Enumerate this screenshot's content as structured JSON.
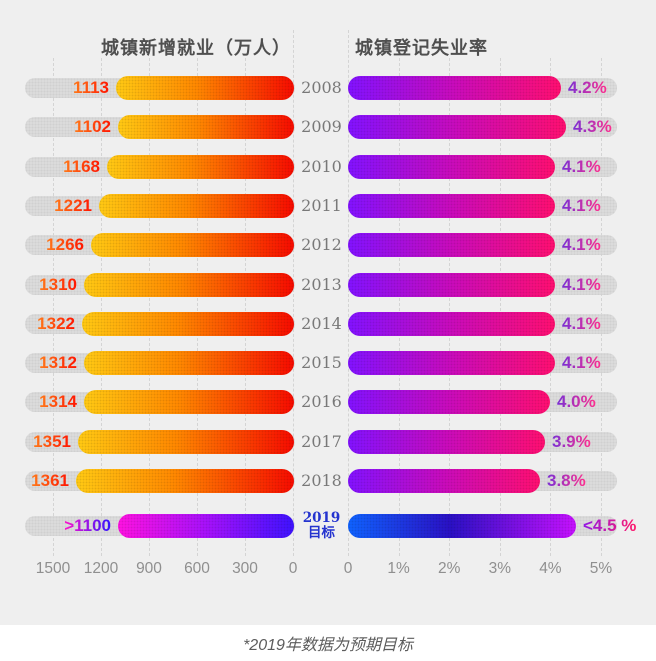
{
  "chart_data": {
    "type": "bar",
    "orientation": "horizontal-paired",
    "note": "*2019年数据为预期目标",
    "left_panel": {
      "title": "城镇新增就业（万人）",
      "axis_ticks": [
        "1500",
        "1200",
        "900",
        "600",
        "300",
        "0"
      ],
      "axis_range": [
        0,
        1500
      ],
      "direction": "right-to-left",
      "grid": true
    },
    "right_panel": {
      "title": "城镇登记失业率",
      "axis_ticks": [
        "0",
        "1%",
        "2%",
        "3%",
        "4%",
        "5%"
      ],
      "axis_range": [
        0,
        5
      ],
      "direction": "left-to-right",
      "grid": true
    },
    "categories": [
      "2008",
      "2009",
      "2010",
      "2011",
      "2012",
      "2013",
      "2014",
      "2015",
      "2016",
      "2017",
      "2018",
      "2019目标"
    ],
    "series": [
      {
        "name": "城镇新增就业（万人）",
        "values": [
          1113,
          1102,
          1168,
          1221,
          1266,
          1310,
          1322,
          1312,
          1314,
          1351,
          1361,
          ">1100"
        ]
      },
      {
        "name": "城镇登记失业率",
        "values": [
          4.2,
          4.3,
          4.1,
          4.1,
          4.1,
          4.1,
          4.1,
          4.1,
          4.0,
          3.9,
          3.8,
          "<4.5%"
        ]
      }
    ],
    "rows": [
      {
        "year": "2008",
        "employment": 1113,
        "employment_label": "1113",
        "unemployment": 4.2,
        "unemployment_label": "4.2%",
        "target": false
      },
      {
        "year": "2009",
        "employment": 1102,
        "employment_label": "1102",
        "unemployment": 4.3,
        "unemployment_label": "4.3%",
        "target": false
      },
      {
        "year": "2010",
        "employment": 1168,
        "employment_label": "1168",
        "unemployment": 4.1,
        "unemployment_label": "4.1%",
        "target": false
      },
      {
        "year": "2011",
        "employment": 1221,
        "employment_label": "1221",
        "unemployment": 4.1,
        "unemployment_label": "4.1%",
        "target": false
      },
      {
        "year": "2012",
        "employment": 1266,
        "employment_label": "1266",
        "unemployment": 4.1,
        "unemployment_label": "4.1%",
        "target": false
      },
      {
        "year": "2013",
        "employment": 1310,
        "employment_label": "1310",
        "unemployment": 4.1,
        "unemployment_label": "4.1%",
        "target": false
      },
      {
        "year": "2014",
        "employment": 1322,
        "employment_label": "1322",
        "unemployment": 4.1,
        "unemployment_label": "4.1%",
        "target": false
      },
      {
        "year": "2015",
        "employment": 1312,
        "employment_label": "1312",
        "unemployment": 4.1,
        "unemployment_label": "4.1%",
        "target": false
      },
      {
        "year": "2016",
        "employment": 1314,
        "employment_label": "1314",
        "unemployment": 4.0,
        "unemployment_label": "4.0%",
        "target": false
      },
      {
        "year": "2017",
        "employment": 1351,
        "employment_label": "1351",
        "unemployment": 3.9,
        "unemployment_label": "3.9%",
        "target": false
      },
      {
        "year": "2018",
        "employment": 1361,
        "employment_label": "1361",
        "unemployment": 3.8,
        "unemployment_label": "3.8%",
        "target": false
      },
      {
        "year": "2019",
        "year_label2": "目标",
        "employment": 1100,
        "employment_label": ">1100",
        "unemployment": 4.5,
        "unemployment_label": "<4.5 %",
        "target": true
      }
    ]
  },
  "colors": {
    "bg": "#efefef",
    "track": "#dbdbdb",
    "grid": "#d4d4d4",
    "title_text": "#4f4f4f",
    "axis_text": "#8f8f8f",
    "year_text": "#787878",
    "target_year_text": "#2433cf",
    "footer_text": "#5c5c5c",
    "emp_start": "#ffc913",
    "emp_mid": "#ff8800",
    "emp_end": "#f60b00",
    "emp_label_start": "#ff7a1a",
    "emp_label_end": "#ff1500",
    "unemp_start": "#8212ff",
    "unemp_mid": "#c90bbb",
    "unemp_end": "#ff0f70",
    "unemp_label_start": "#7b2fd4",
    "unemp_label_end": "#ff2f8e",
    "target_emp_start": "#fe12e0",
    "target_emp_mid": "#a711fa",
    "target_emp_end": "#3e12fe",
    "target_emp_label_start": "#ff14cc",
    "target_emp_label_end": "#3214ff",
    "target_unemp_start": "#0f62fe",
    "target_unemp_mid": "#2a10c4",
    "target_unemp_end": "#c611fe",
    "target_unemp_label_start": "#9318e6",
    "target_unemp_label_end": "#ff1a6b"
  }
}
